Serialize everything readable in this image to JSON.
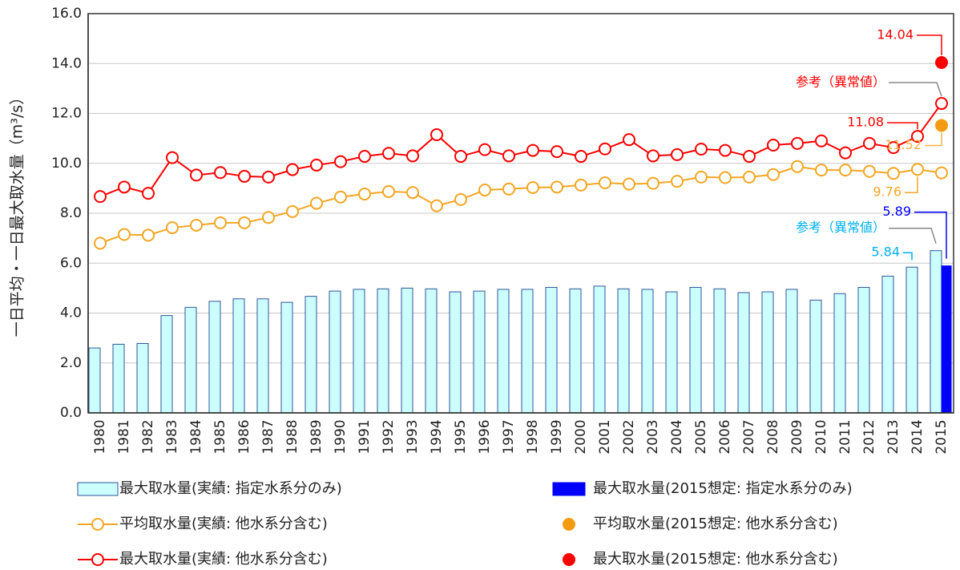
{
  "chart_data": {
    "type": "bar",
    "y_label": "一日平均・一日最大取水量（m³/s）",
    "categories": [
      "1980",
      "1981",
      "1982",
      "1983",
      "1984",
      "1985",
      "1986",
      "1987",
      "1988",
      "1989",
      "1990",
      "1991",
      "1992",
      "1993",
      "1994",
      "1995",
      "1996",
      "1997",
      "1998",
      "1999",
      "2000",
      "2001",
      "2002",
      "2003",
      "2004",
      "2005",
      "2006",
      "2007",
      "2008",
      "2009",
      "2010",
      "2011",
      "2012",
      "2013",
      "2014",
      "2015"
    ],
    "ylim": [
      0,
      16
    ],
    "yticks": [
      {
        "value": 0,
        "label": "0.0"
      },
      {
        "value": 2,
        "label": "2.0"
      },
      {
        "value": 4,
        "label": "4.0"
      },
      {
        "value": 6,
        "label": "6.0"
      },
      {
        "value": 8,
        "label": "8.0"
      },
      {
        "value": 10,
        "label": "10.0"
      },
      {
        "value": 12,
        "label": "12.0"
      },
      {
        "value": 14,
        "label": "14.0"
      },
      {
        "value": 16,
        "label": "16.0"
      }
    ],
    "grid": true,
    "series": [
      {
        "name": "最大取水量(実績: 指定水系分のみ)",
        "type": "bar",
        "color": "#ccffff",
        "edge_color": "#2f5597",
        "label_color": "#00b0f0",
        "values": [
          2.6,
          2.75,
          2.78,
          3.9,
          4.23,
          4.47,
          4.57,
          4.57,
          4.43,
          4.67,
          4.88,
          4.95,
          4.97,
          5.0,
          4.97,
          4.85,
          4.88,
          4.95,
          4.95,
          5.03,
          4.97,
          5.08,
          4.97,
          4.95,
          4.85,
          5.03,
          4.97,
          4.82,
          4.85,
          4.95,
          4.52,
          4.78,
          5.03,
          5.48,
          5.84,
          6.5
        ],
        "value_labels": [
          null,
          null,
          null,
          null,
          null,
          null,
          null,
          null,
          null,
          null,
          null,
          null,
          null,
          null,
          null,
          null,
          null,
          null,
          null,
          null,
          null,
          null,
          null,
          null,
          null,
          null,
          null,
          null,
          null,
          null,
          null,
          null,
          null,
          null,
          "5.84",
          null
        ],
        "annotation": "参考（異常値）"
      },
      {
        "name": "最大取水量(2015想定: 指定水系分のみ)",
        "type": "bar",
        "color": "#0000ff",
        "edge_color": "#0000ff",
        "values": [
          null,
          null,
          null,
          null,
          null,
          null,
          null,
          null,
          null,
          null,
          null,
          null,
          null,
          null,
          null,
          null,
          null,
          null,
          null,
          null,
          null,
          null,
          null,
          null,
          null,
          null,
          null,
          null,
          null,
          null,
          null,
          null,
          null,
          null,
          null,
          5.89
        ],
        "value_labels": [
          null,
          null,
          null,
          null,
          null,
          null,
          null,
          null,
          null,
          null,
          null,
          null,
          null,
          null,
          null,
          null,
          null,
          null,
          null,
          null,
          null,
          null,
          null,
          null,
          null,
          null,
          null,
          null,
          null,
          null,
          null,
          null,
          null,
          null,
          null,
          "5.89"
        ]
      },
      {
        "name": "平均取水量(実績: 他水系分含む)",
        "type": "line",
        "color": "#f5a623",
        "values": [
          6.8,
          7.15,
          7.12,
          7.42,
          7.52,
          7.62,
          7.62,
          7.83,
          8.07,
          8.4,
          8.65,
          8.77,
          8.87,
          8.83,
          8.3,
          8.55,
          8.93,
          8.97,
          9.03,
          9.05,
          9.13,
          9.22,
          9.17,
          9.2,
          9.28,
          9.45,
          9.43,
          9.45,
          9.55,
          9.87,
          9.73,
          9.73,
          9.68,
          9.6,
          9.76,
          9.62
        ],
        "value_labels": [
          null,
          null,
          null,
          null,
          null,
          null,
          null,
          null,
          null,
          null,
          null,
          null,
          null,
          null,
          null,
          null,
          null,
          null,
          null,
          null,
          null,
          null,
          null,
          null,
          null,
          null,
          null,
          null,
          null,
          null,
          null,
          null,
          null,
          null,
          "9.76",
          null
        ]
      },
      {
        "name": "平均取水量(2015想定: 他水系分含む)",
        "type": "scatter",
        "color": "#f39c12",
        "label_color": "#f5b041",
        "values": [
          null,
          null,
          null,
          null,
          null,
          null,
          null,
          null,
          null,
          null,
          null,
          null,
          null,
          null,
          null,
          null,
          null,
          null,
          null,
          null,
          null,
          null,
          null,
          null,
          null,
          null,
          null,
          null,
          null,
          null,
          null,
          null,
          null,
          null,
          null,
          11.52
        ],
        "value_labels": [
          null,
          null,
          null,
          null,
          null,
          null,
          null,
          null,
          null,
          null,
          null,
          null,
          null,
          null,
          null,
          null,
          null,
          null,
          null,
          null,
          null,
          null,
          null,
          null,
          null,
          null,
          null,
          null,
          null,
          null,
          null,
          null,
          null,
          null,
          null,
          "11.52"
        ]
      },
      {
        "name": "最大取水量(実績: 他水系分含む)",
        "type": "line",
        "color": "#ff0000",
        "values": [
          8.67,
          9.05,
          8.8,
          10.23,
          9.53,
          9.63,
          9.48,
          9.45,
          9.75,
          9.93,
          10.07,
          10.28,
          10.4,
          10.3,
          11.15,
          10.28,
          10.55,
          10.3,
          10.52,
          10.47,
          10.28,
          10.58,
          10.95,
          10.3,
          10.35,
          10.57,
          10.52,
          10.28,
          10.73,
          10.8,
          10.9,
          10.42,
          10.8,
          10.63,
          11.08,
          12.4
        ],
        "value_labels": [
          null,
          null,
          null,
          null,
          null,
          null,
          null,
          null,
          null,
          null,
          null,
          null,
          null,
          null,
          null,
          null,
          null,
          null,
          null,
          null,
          null,
          null,
          null,
          null,
          null,
          null,
          null,
          null,
          null,
          null,
          null,
          null,
          null,
          null,
          "11.08",
          null
        ],
        "annotation": "参考（異常値）"
      },
      {
        "name": "最大取水量(2015想定: 他水系分含む)",
        "type": "scatter",
        "color": "#ff0000",
        "values": [
          null,
          null,
          null,
          null,
          null,
          null,
          null,
          null,
          null,
          null,
          null,
          null,
          null,
          null,
          null,
          null,
          null,
          null,
          null,
          null,
          null,
          null,
          null,
          null,
          null,
          null,
          null,
          null,
          null,
          null,
          null,
          null,
          null,
          null,
          null,
          14.04
        ],
        "value_labels": [
          null,
          null,
          null,
          null,
          null,
          null,
          null,
          null,
          null,
          null,
          null,
          null,
          null,
          null,
          null,
          null,
          null,
          null,
          null,
          null,
          null,
          null,
          null,
          null,
          null,
          null,
          null,
          null,
          null,
          null,
          null,
          null,
          null,
          null,
          null,
          "14.04"
        ]
      }
    ]
  }
}
